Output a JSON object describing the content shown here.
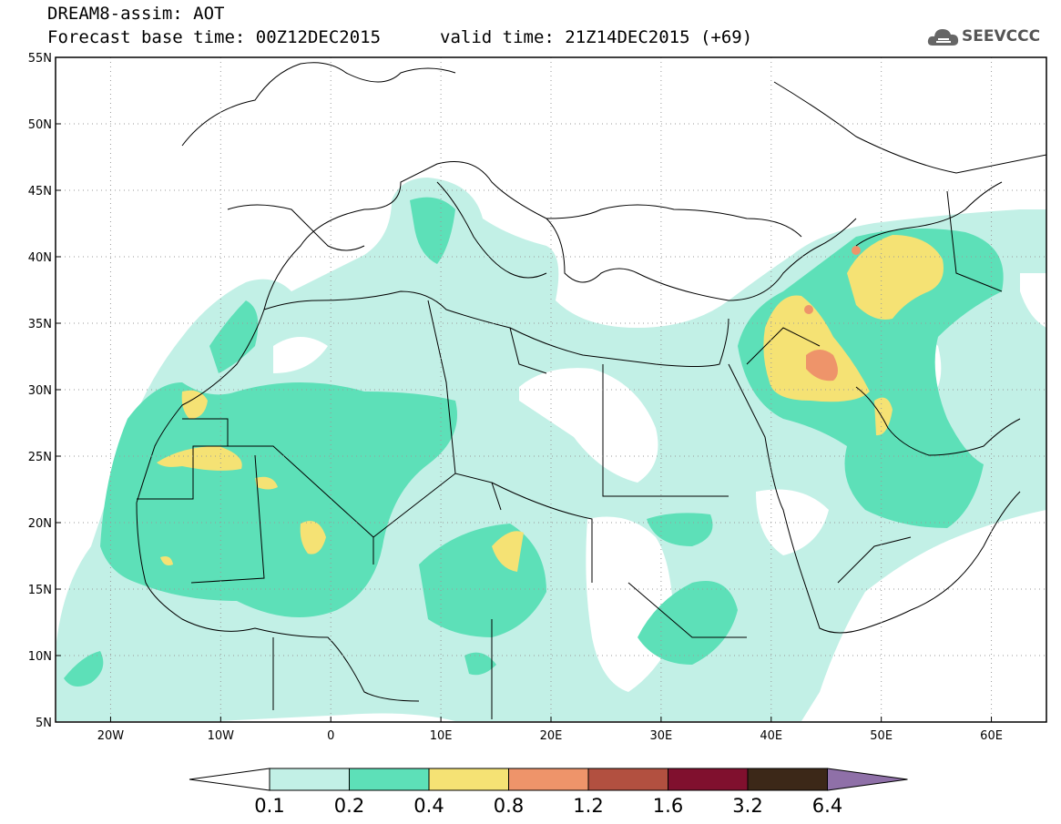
{
  "header": {
    "title": "DREAM8-assim: AOT",
    "base_time": "Forecast base time: 00Z12DEC2015",
    "valid_time": "valid time: 21Z14DEC2015 (+69)",
    "logo_text": "SEEVCCC",
    "logo_icon": "cloud-logo-icon"
  },
  "map": {
    "lon_range": [
      -25,
      65
    ],
    "lat_range": [
      5,
      55
    ],
    "lat_labels": [
      "55N",
      "50N",
      "45N",
      "40N",
      "35N",
      "30N",
      "25N",
      "20N",
      "15N",
      "10N",
      "5N"
    ],
    "lon_labels": [
      "20W",
      "10W",
      "0",
      "10E",
      "20E",
      "30E",
      "40E",
      "50E",
      "60E"
    ],
    "grid": "dotted"
  },
  "colorbar": {
    "labels": [
      "0.1",
      "0.2",
      "0.4",
      "0.8",
      "1.2",
      "1.6",
      "3.2",
      "6.4"
    ],
    "colors": [
      "#ffffff",
      "#c2f0e6",
      "#5de0b8",
      "#f5e274",
      "#ee946a",
      "#b25040",
      "#80102e",
      "#3c2818",
      "#8f70a8"
    ]
  }
}
